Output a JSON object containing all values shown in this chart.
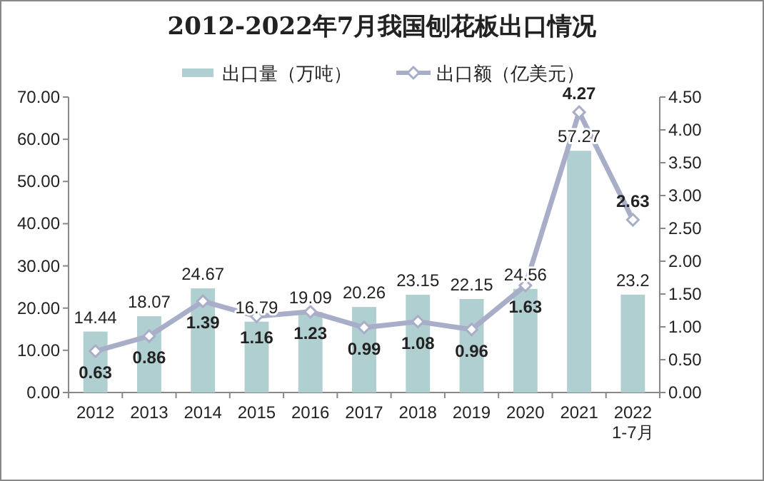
{
  "chart_data": {
    "type": "bar",
    "title": "2012-2022年7月我国刨花板出口情况",
    "categories": [
      "2012",
      "2013",
      "2014",
      "2015",
      "2016",
      "2017",
      "2018",
      "2019",
      "2020",
      "2021",
      "2022\n1-7月"
    ],
    "series": [
      {
        "name": "出口量（万吨）",
        "color": "#b0cfd0",
        "values": [
          14.44,
          18.07,
          24.67,
          16.79,
          19.09,
          20.26,
          23.15,
          22.15,
          24.56,
          57.27,
          23.2
        ]
      },
      {
        "name": "出口额（亿美元）",
        "type": "line",
        "axis": "y2",
        "color": "#a9aec8",
        "marker": "diamond",
        "values": [
          0.63,
          0.86,
          1.39,
          1.16,
          1.23,
          0.99,
          1.08,
          0.96,
          1.63,
          4.27,
          2.63
        ]
      }
    ],
    "ylim": [
      0,
      70
    ],
    "yticks": [
      {
        "value": 0,
        "label": "0.00"
      },
      {
        "value": 10,
        "label": "10.00"
      },
      {
        "value": 20,
        "label": "20.00"
      },
      {
        "value": 30,
        "label": "30.00"
      },
      {
        "value": 40,
        "label": "40.00"
      },
      {
        "value": 50,
        "label": "50.00"
      },
      {
        "value": 60,
        "label": "60.00"
      },
      {
        "value": 70,
        "label": "70.00"
      }
    ],
    "y2lim": [
      0,
      4.5
    ],
    "y2ticks": [
      {
        "value": 0,
        "label": "0.00"
      },
      {
        "value": 0.5,
        "label": "0.50"
      },
      {
        "value": 1,
        "label": "1.00"
      },
      {
        "value": 1.5,
        "label": "1.50"
      },
      {
        "value": 2,
        "label": "2.00"
      },
      {
        "value": 2.5,
        "label": "2.50"
      },
      {
        "value": 3,
        "label": "3.00"
      },
      {
        "value": 3.5,
        "label": "3.50"
      },
      {
        "value": 4,
        "label": "4.00"
      },
      {
        "value": 4.5,
        "label": "4.50"
      }
    ],
    "data_labels": true,
    "legend": "top"
  }
}
